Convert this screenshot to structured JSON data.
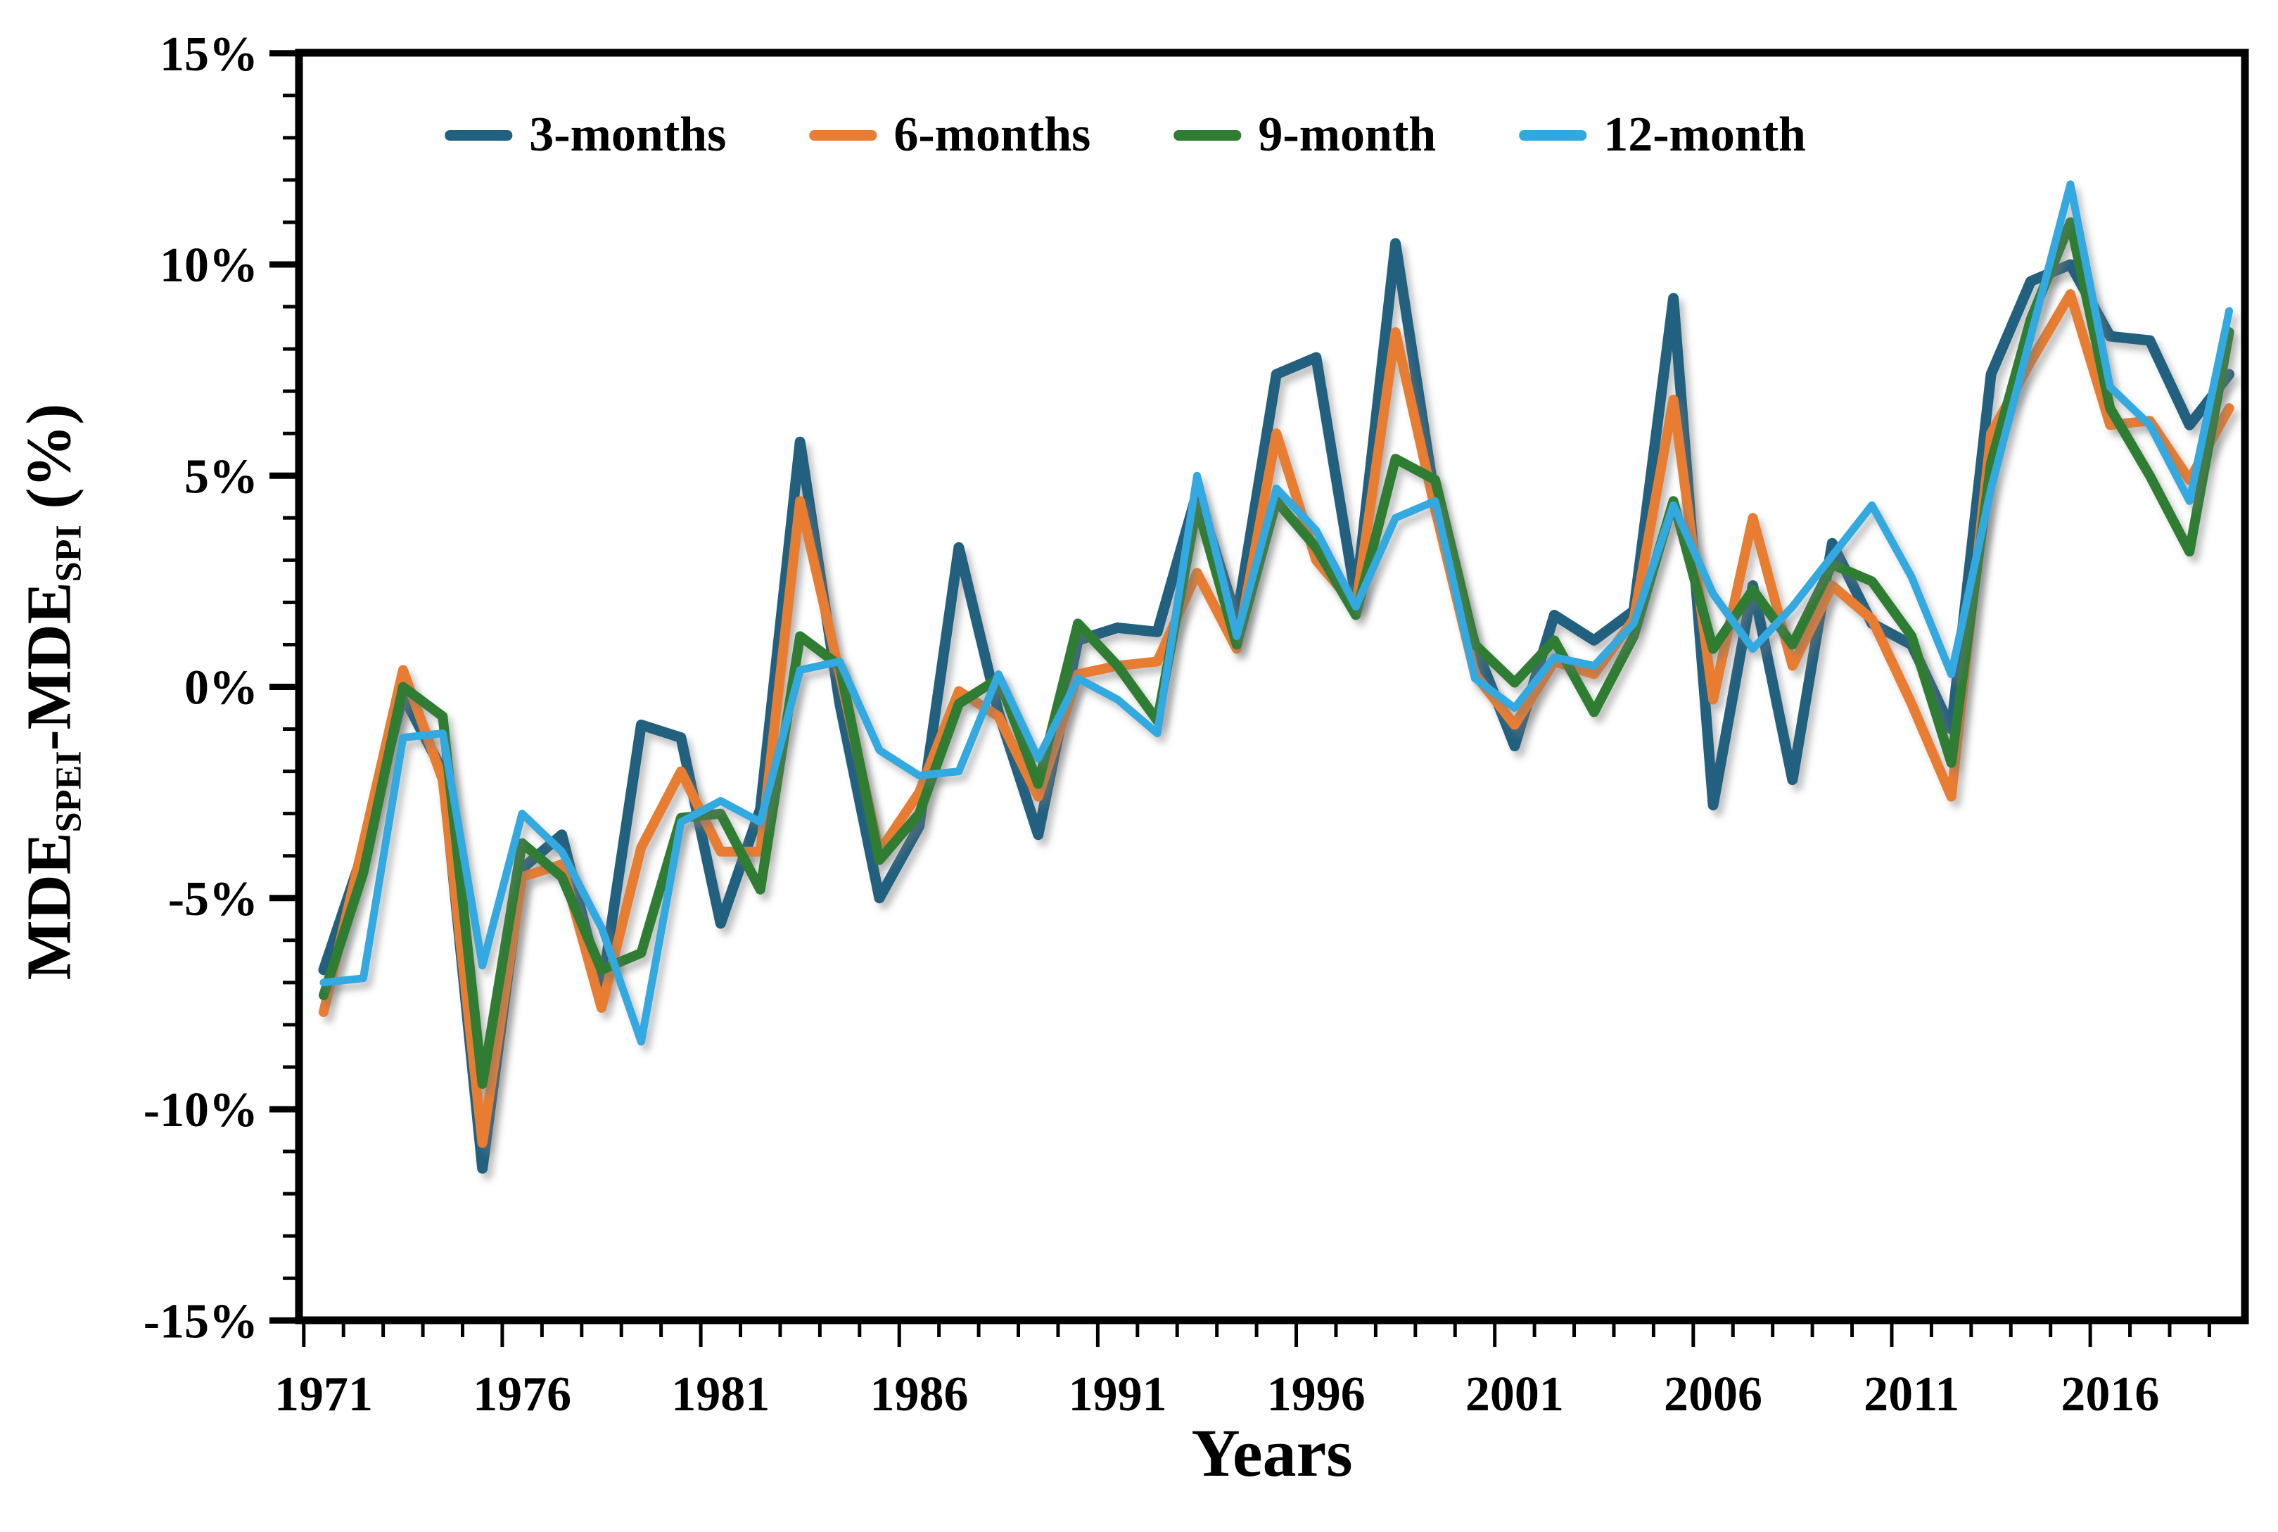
{
  "figure": {
    "background": "#ffffff",
    "axis_color": "#000000",
    "tick_label_format": "percent"
  },
  "chart_data": {
    "type": "line",
    "title": "",
    "xlabel": "Years",
    "ylabel": "MDE_SPEI-MDE_SPI (%)",
    "ylabel_parts": [
      {
        "t": "MDE",
        "sub": false
      },
      {
        "t": "SPEI",
        "sub": true
      },
      {
        "t": "-MDE",
        "sub": false
      },
      {
        "t": "SPI",
        "sub": true
      },
      {
        "t": " (%)",
        "sub": false
      }
    ],
    "ylim": [
      -15,
      15
    ],
    "ytick_major_step": 5,
    "ytick_minor_step": 1,
    "ytick_labels": [
      "15%",
      "10%",
      "5%",
      "0%",
      "-5%",
      "-10%",
      "-15%"
    ],
    "x": [
      1971,
      1972,
      1973,
      1974,
      1975,
      1976,
      1977,
      1978,
      1979,
      1980,
      1981,
      1982,
      1983,
      1984,
      1985,
      1986,
      1987,
      1988,
      1989,
      1990,
      1991,
      1992,
      1993,
      1994,
      1995,
      1996,
      1997,
      1998,
      1999,
      2000,
      2001,
      2002,
      2003,
      2004,
      2005,
      2006,
      2007,
      2008,
      2009,
      2010,
      2011,
      2012,
      2013,
      2014,
      2015,
      2016,
      2017,
      2018,
      2019
    ],
    "x_tick_labels": [
      "1971",
      "1976",
      "1981",
      "1986",
      "1991",
      "1996",
      "2001",
      "2006",
      "2011",
      "2016"
    ],
    "grid": false,
    "legend_position": "top-center",
    "series": [
      {
        "name": "3-months",
        "color": "#20617F",
        "stroke_width": 15,
        "values": [
          -6.7,
          -3.9,
          -0.2,
          -2.0,
          -11.4,
          -4.3,
          -3.5,
          -7.2,
          -0.9,
          -1.2,
          -5.6,
          -2.9,
          5.8,
          -0.4,
          -5.0,
          -3.3,
          3.3,
          -0.6,
          -3.5,
          1.1,
          1.4,
          1.3,
          4.6,
          1.6,
          7.4,
          7.8,
          2.1,
          10.5,
          4.4,
          1.0,
          -1.4,
          1.7,
          1.1,
          1.8,
          9.2,
          -2.8,
          2.4,
          -2.2,
          3.4,
          1.5,
          1.0,
          -1.0,
          7.4,
          9.6,
          10.0,
          8.3,
          8.2,
          6.2,
          7.4
        ]
      },
      {
        "name": "6-months",
        "color": "#E87D33",
        "stroke_width": 14,
        "values": [
          -7.7,
          -3.7,
          0.4,
          -2.2,
          -10.8,
          -4.5,
          -4.2,
          -7.6,
          -3.8,
          -2.0,
          -3.9,
          -3.9,
          4.4,
          0.3,
          -3.9,
          -2.5,
          -0.1,
          -0.7,
          -2.6,
          0.3,
          0.5,
          0.6,
          2.7,
          0.9,
          6.0,
          3.0,
          1.9,
          8.4,
          4.2,
          0.3,
          -0.9,
          0.6,
          0.3,
          1.6,
          6.8,
          -0.3,
          4.0,
          0.5,
          2.4,
          1.6,
          -0.4,
          -2.6,
          6.0,
          7.7,
          9.3,
          6.2,
          6.3,
          4.9,
          6.6
        ]
      },
      {
        "name": "9-month",
        "color": "#2E7D32",
        "stroke_width": 14,
        "values": [
          -7.3,
          -4.4,
          0.0,
          -0.7,
          -9.4,
          -3.7,
          -4.5,
          -6.7,
          -6.3,
          -3.1,
          -3.0,
          -4.8,
          1.2,
          0.5,
          -4.1,
          -3.0,
          -0.4,
          0.2,
          -2.3,
          1.5,
          0.5,
          -0.8,
          4.3,
          1.0,
          4.4,
          3.3,
          1.7,
          5.4,
          4.9,
          1.0,
          0.1,
          1.1,
          -0.6,
          1.2,
          4.4,
          0.9,
          2.3,
          1.0,
          2.9,
          2.5,
          1.2,
          -1.8,
          5.3,
          8.7,
          11.0,
          6.6,
          5.0,
          3.2,
          8.4
        ]
      },
      {
        "name": "12-month",
        "color": "#30A9E0",
        "stroke_width": 11,
        "values": [
          -7.0,
          -6.9,
          -1.2,
          -1.1,
          -6.6,
          -3.0,
          -3.9,
          -5.7,
          -8.4,
          -3.2,
          -2.7,
          -3.2,
          0.4,
          0.6,
          -1.5,
          -2.1,
          -2.0,
          0.3,
          -1.7,
          0.2,
          -0.3,
          -1.1,
          5.0,
          1.2,
          4.7,
          3.7,
          1.9,
          4.0,
          4.4,
          0.2,
          -0.5,
          0.7,
          0.5,
          1.5,
          4.3,
          2.2,
          0.9,
          1.9,
          3.1,
          4.3,
          2.6,
          0.3,
          4.7,
          8.3,
          11.9,
          7.1,
          6.2,
          4.4,
          8.9
        ]
      }
    ]
  }
}
